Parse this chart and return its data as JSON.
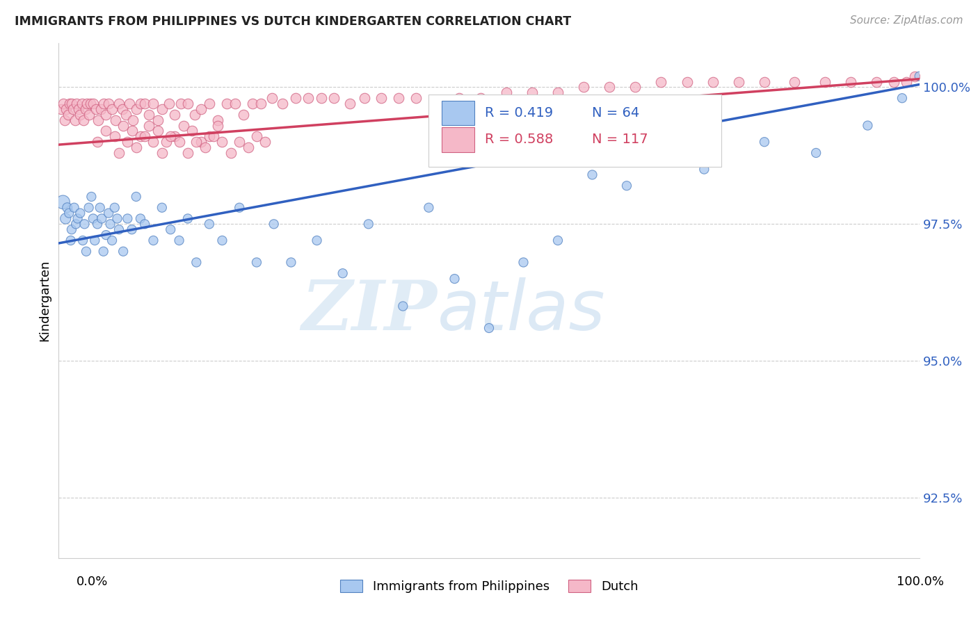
{
  "title": "IMMIGRANTS FROM PHILIPPINES VS DUTCH KINDERGARTEN CORRELATION CHART",
  "source": "Source: ZipAtlas.com",
  "ylabel": "Kindergarten",
  "xlim": [
    0.0,
    1.0
  ],
  "ylim": [
    0.914,
    1.008
  ],
  "yticks": [
    0.925,
    0.95,
    0.975,
    1.0
  ],
  "ytick_labels": [
    "92.5%",
    "95.0%",
    "97.5%",
    "100.0%"
  ],
  "legend_blue_r": "R = 0.419",
  "legend_blue_n": "N = 64",
  "legend_red_r": "R = 0.588",
  "legend_red_n": "N = 117",
  "blue_fill": "#a8c8f0",
  "pink_fill": "#f5b8c8",
  "blue_edge": "#5080c0",
  "pink_edge": "#d06080",
  "blue_line": "#3060c0",
  "pink_line": "#d04060",
  "legend_label_blue": "Immigrants from Philippines",
  "legend_label_pink": "Dutch",
  "watermark_zip": "ZIP",
  "watermark_atlas": "atlas",
  "blue_trend": [
    0.0,
    1.0,
    0.9715,
    1.0005
  ],
  "pink_trend": [
    0.0,
    1.0,
    0.9895,
    1.0015
  ],
  "blue_x": [
    0.005,
    0.008,
    0.01,
    0.012,
    0.014,
    0.015,
    0.018,
    0.02,
    0.022,
    0.025,
    0.028,
    0.03,
    0.032,
    0.035,
    0.038,
    0.04,
    0.042,
    0.045,
    0.048,
    0.05,
    0.052,
    0.055,
    0.058,
    0.06,
    0.062,
    0.065,
    0.068,
    0.07,
    0.075,
    0.08,
    0.085,
    0.09,
    0.095,
    0.1,
    0.11,
    0.12,
    0.13,
    0.14,
    0.15,
    0.16,
    0.175,
    0.19,
    0.21,
    0.23,
    0.25,
    0.27,
    0.3,
    0.33,
    0.36,
    0.4,
    0.43,
    0.46,
    0.5,
    0.54,
    0.58,
    0.62,
    0.66,
    0.7,
    0.75,
    0.82,
    0.88,
    0.94,
    0.98,
    1.0
  ],
  "blue_y": [
    0.979,
    0.976,
    0.978,
    0.977,
    0.972,
    0.974,
    0.978,
    0.975,
    0.976,
    0.977,
    0.972,
    0.975,
    0.97,
    0.978,
    0.98,
    0.976,
    0.972,
    0.975,
    0.978,
    0.976,
    0.97,
    0.973,
    0.977,
    0.975,
    0.972,
    0.978,
    0.976,
    0.974,
    0.97,
    0.976,
    0.974,
    0.98,
    0.976,
    0.975,
    0.972,
    0.978,
    0.974,
    0.972,
    0.976,
    0.968,
    0.975,
    0.972,
    0.978,
    0.968,
    0.975,
    0.968,
    0.972,
    0.966,
    0.975,
    0.96,
    0.978,
    0.965,
    0.956,
    0.968,
    0.972,
    0.984,
    0.982,
    0.988,
    0.985,
    0.99,
    0.988,
    0.993,
    0.998,
    1.002
  ],
  "blue_sizes": [
    200,
    120,
    100,
    90,
    90,
    90,
    90,
    90,
    90,
    90,
    90,
    90,
    90,
    90,
    90,
    90,
    90,
    90,
    90,
    90,
    90,
    90,
    90,
    90,
    90,
    90,
    90,
    90,
    90,
    90,
    90,
    90,
    90,
    90,
    90,
    90,
    90,
    90,
    90,
    90,
    90,
    90,
    90,
    90,
    90,
    90,
    90,
    90,
    90,
    90,
    90,
    90,
    90,
    90,
    90,
    90,
    90,
    90,
    90,
    90,
    90,
    90,
    90,
    90
  ],
  "pink_x": [
    0.003,
    0.005,
    0.007,
    0.009,
    0.011,
    0.013,
    0.015,
    0.017,
    0.019,
    0.021,
    0.023,
    0.025,
    0.027,
    0.029,
    0.031,
    0.033,
    0.035,
    0.037,
    0.04,
    0.043,
    0.046,
    0.049,
    0.052,
    0.055,
    0.058,
    0.062,
    0.066,
    0.07,
    0.074,
    0.078,
    0.082,
    0.086,
    0.09,
    0.095,
    0.1,
    0.105,
    0.11,
    0.115,
    0.12,
    0.128,
    0.135,
    0.142,
    0.15,
    0.158,
    0.165,
    0.175,
    0.185,
    0.195,
    0.205,
    0.215,
    0.225,
    0.235,
    0.248,
    0.26,
    0.275,
    0.29,
    0.305,
    0.32,
    0.338,
    0.355,
    0.375,
    0.395,
    0.415,
    0.44,
    0.465,
    0.49,
    0.52,
    0.55,
    0.58,
    0.61,
    0.64,
    0.67,
    0.7,
    0.73,
    0.76,
    0.79,
    0.82,
    0.855,
    0.89,
    0.92,
    0.95,
    0.97,
    0.985,
    0.995,
    0.045,
    0.055,
    0.065,
    0.075,
    0.085,
    0.095,
    0.105,
    0.115,
    0.125,
    0.135,
    0.145,
    0.155,
    0.165,
    0.175,
    0.185,
    0.07,
    0.08,
    0.09,
    0.1,
    0.11,
    0.12,
    0.13,
    0.14,
    0.15,
    0.16,
    0.17,
    0.18,
    0.19,
    0.2,
    0.21,
    0.22,
    0.23,
    0.24
  ],
  "pink_y": [
    0.996,
    0.997,
    0.994,
    0.996,
    0.995,
    0.997,
    0.997,
    0.996,
    0.994,
    0.997,
    0.996,
    0.995,
    0.997,
    0.994,
    0.996,
    0.997,
    0.995,
    0.997,
    0.997,
    0.996,
    0.994,
    0.996,
    0.997,
    0.995,
    0.997,
    0.996,
    0.994,
    0.997,
    0.996,
    0.995,
    0.997,
    0.994,
    0.996,
    0.997,
    0.997,
    0.995,
    0.997,
    0.994,
    0.996,
    0.997,
    0.995,
    0.997,
    0.997,
    0.995,
    0.996,
    0.997,
    0.994,
    0.997,
    0.997,
    0.995,
    0.997,
    0.997,
    0.998,
    0.997,
    0.998,
    0.998,
    0.998,
    0.998,
    0.997,
    0.998,
    0.998,
    0.998,
    0.998,
    0.997,
    0.998,
    0.998,
    0.999,
    0.999,
    0.999,
    1.0,
    1.0,
    1.0,
    1.001,
    1.001,
    1.001,
    1.001,
    1.001,
    1.001,
    1.001,
    1.001,
    1.001,
    1.001,
    1.001,
    1.002,
    0.99,
    0.992,
    0.991,
    0.993,
    0.992,
    0.991,
    0.993,
    0.992,
    0.99,
    0.991,
    0.993,
    0.992,
    0.99,
    0.991,
    0.993,
    0.988,
    0.99,
    0.989,
    0.991,
    0.99,
    0.988,
    0.991,
    0.99,
    0.988,
    0.99,
    0.989,
    0.991,
    0.99,
    0.988,
    0.99,
    0.989,
    0.991,
    0.99
  ]
}
